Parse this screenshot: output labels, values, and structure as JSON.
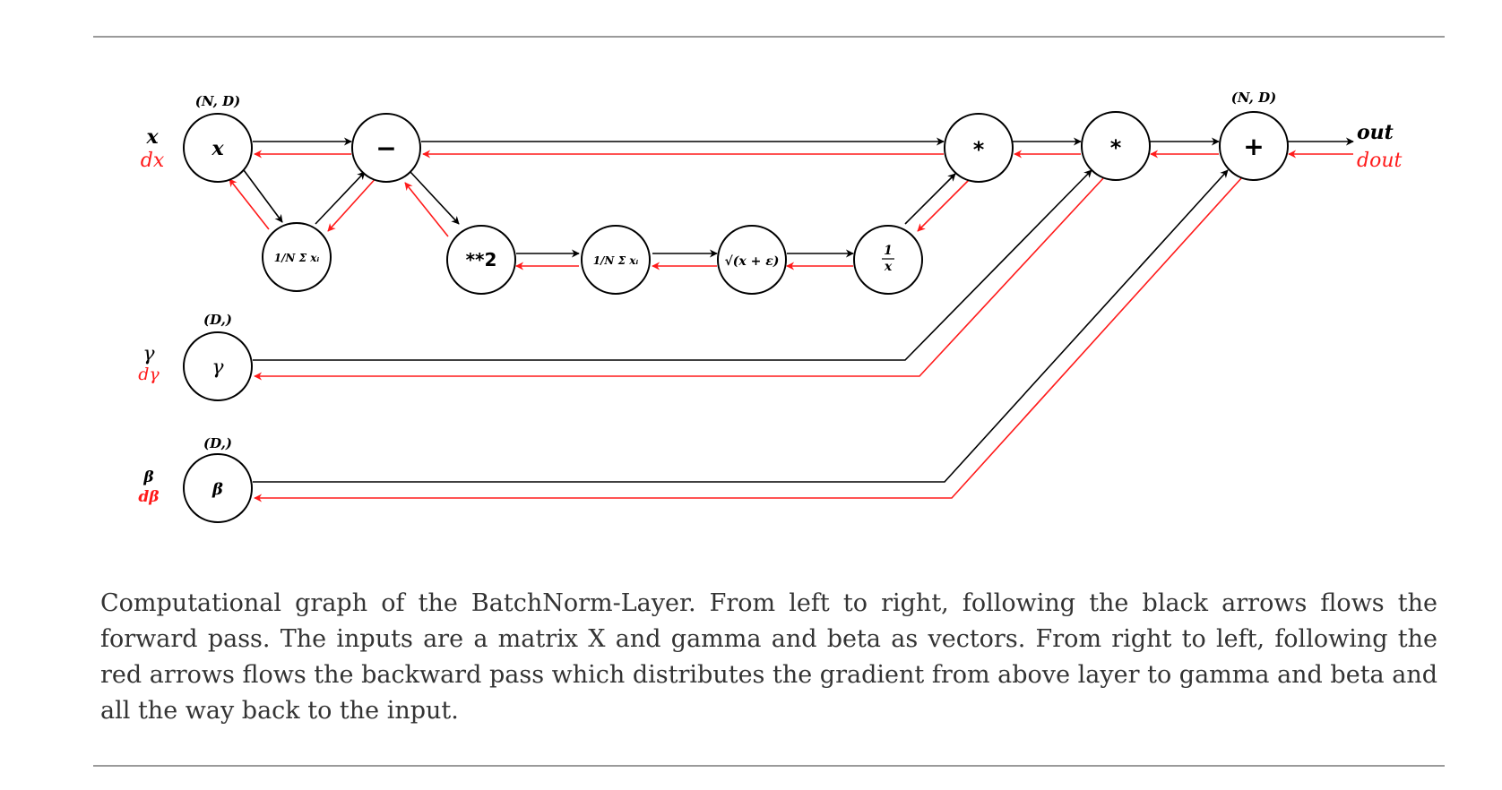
{
  "diagram": {
    "colors": {
      "forward": "#000000",
      "backward": "#ff1a1a",
      "caption": "#333333",
      "rule": "#9a9a9a"
    },
    "side_labels": {
      "x": {
        "fwd": "x",
        "bwd": "dx"
      },
      "gamma": {
        "fwd": "γ",
        "bwd": "dγ"
      },
      "beta": {
        "fwd": "β",
        "bwd": "dβ"
      }
    },
    "shapes": {
      "x": "(N, D)",
      "gamma": "(D,)",
      "beta": "(D,)",
      "out": "(N, D)"
    },
    "nodes": {
      "x": "x",
      "mean1": "1/N Σ xᵢ",
      "minus": "−",
      "sq": "**2",
      "mean2": "1/N Σ xᵢ",
      "sqrt": "√(x + ε)",
      "inv_num": "1",
      "inv_den": "x",
      "mul1": "*",
      "mul2": "*",
      "plus": "+",
      "gamma": "γ",
      "beta": "β"
    },
    "output": {
      "fwd": "out",
      "bwd": "dout"
    }
  },
  "caption": "Computational graph of the BatchNorm-Layer. From left to right, following the black arrows flows the forward pass. The inputs are a matrix X and gamma and beta as vectors. From right to left, following the red arrows flows the backward pass which distributes the gradient from above layer to gamma and beta and all the way back to the input."
}
